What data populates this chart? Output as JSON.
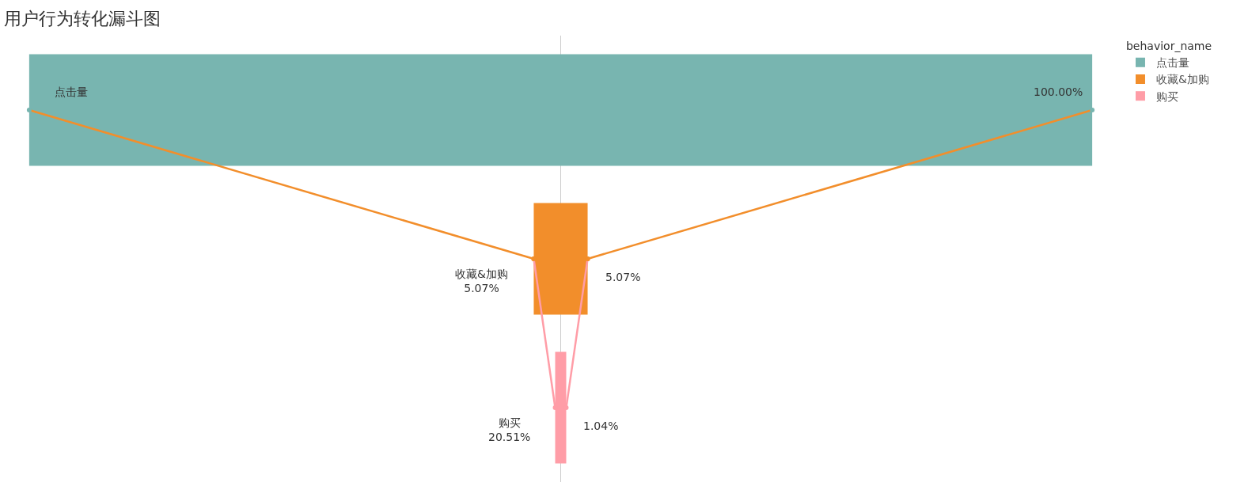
{
  "chart_data": {
    "type": "other",
    "title": "用户行为转化漏斗图",
    "legend_title": "behavior_name",
    "legend": "top right",
    "categories": [
      "点击量",
      "收藏&加购",
      "购买"
    ],
    "series": [
      {
        "name": "点击量",
        "color": "#78b5b0",
        "values": [
          100,
          null,
          null
        ],
        "value_labels": [
          "100.00%",
          null,
          null
        ]
      },
      {
        "name": "收藏&加购",
        "color": "#f28e2b",
        "values": [
          null,
          5.07,
          null
        ],
        "value_labels": [
          null,
          "5.07%",
          null
        ]
      },
      {
        "name": "购买",
        "color": "#ff9da7",
        "values": [
          null,
          null,
          1.04
        ],
        "value_labels": [
          null,
          null,
          "1.04%"
        ]
      }
    ],
    "annotations": [
      "5.07%",
      "20.51%"
    ]
  }
}
